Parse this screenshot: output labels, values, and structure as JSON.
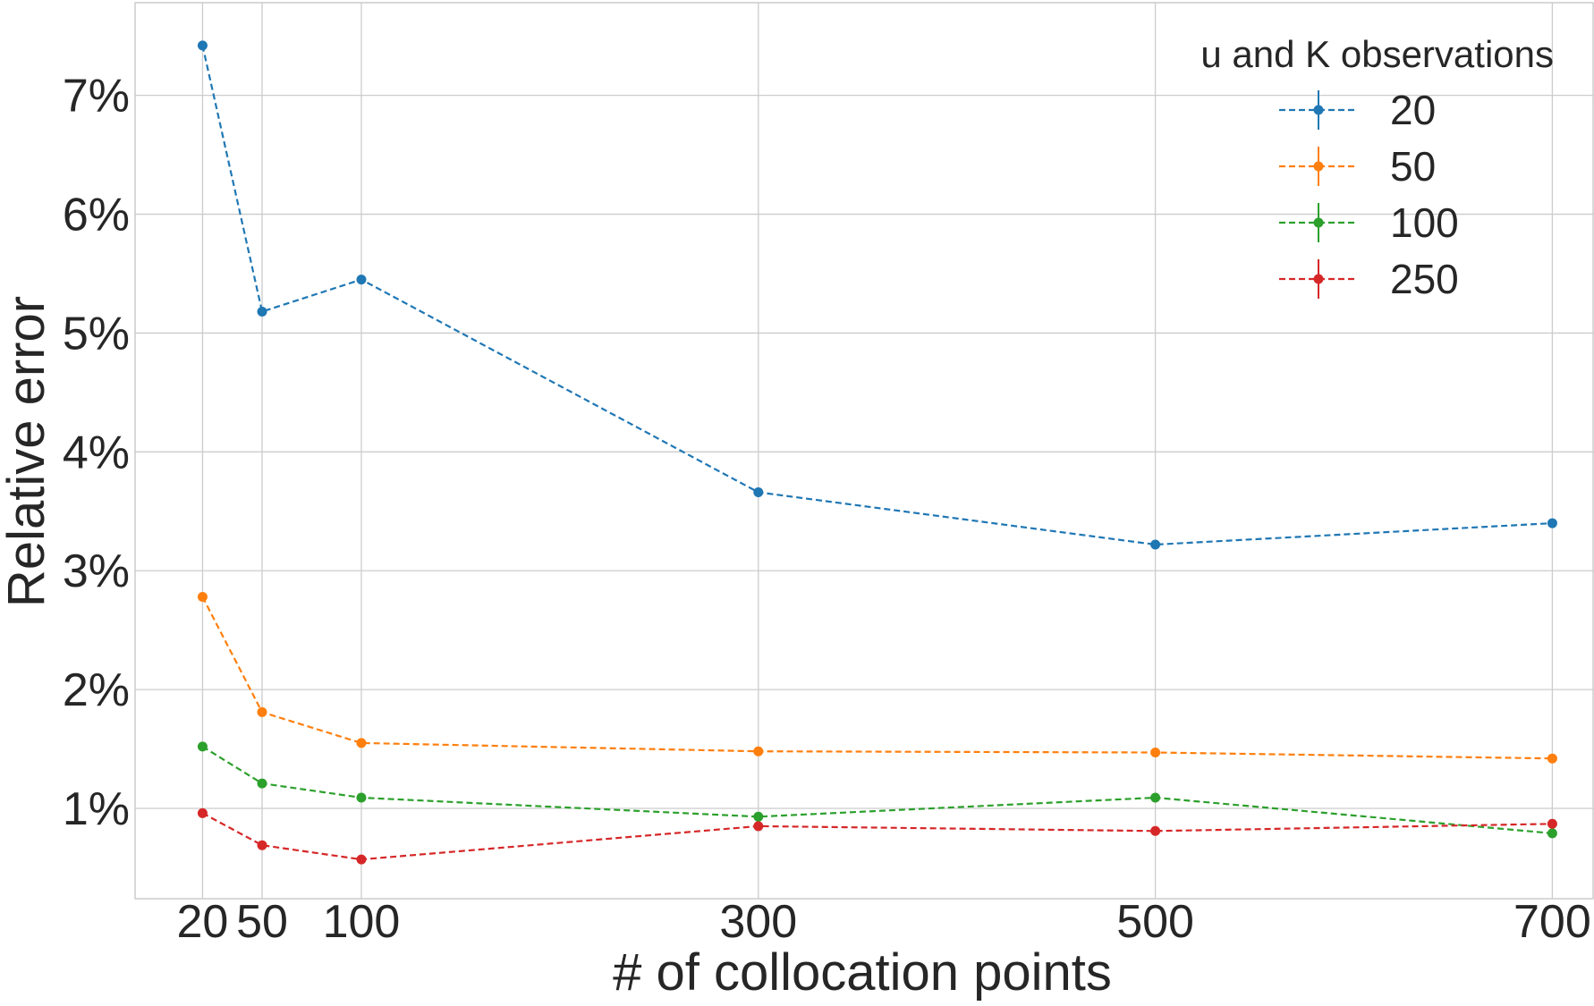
{
  "chart_data": {
    "type": "line",
    "title": "",
    "xlabel": "# of collocation points",
    "ylabel": "Relative error",
    "x": [
      20,
      50,
      100,
      300,
      500,
      700
    ],
    "xticks": [
      20,
      50,
      100,
      300,
      500,
      700
    ],
    "xlim": [
      -14,
      721
    ],
    "yticks": [
      1,
      2,
      3,
      4,
      5,
      6,
      7
    ],
    "ytick_labels": [
      "1%",
      "2%",
      "3%",
      "4%",
      "5%",
      "6%",
      "7%"
    ],
    "ylim": [
      0.24,
      7.78
    ],
    "y_unit": "%",
    "grid": true,
    "line_style": "dashed",
    "marker": "circle",
    "legend": {
      "title": "u and K observations",
      "placement": "top-right"
    },
    "series": [
      {
        "name": "20",
        "color": "#1f77b4",
        "values": [
          7.42,
          5.18,
          5.45,
          3.66,
          3.22,
          3.4
        ]
      },
      {
        "name": "50",
        "color": "#ff7f0e",
        "values": [
          2.78,
          1.81,
          1.55,
          1.48,
          1.47,
          1.42
        ]
      },
      {
        "name": "100",
        "color": "#2ca02c",
        "values": [
          1.52,
          1.21,
          1.09,
          0.93,
          1.09,
          0.79
        ]
      },
      {
        "name": "250",
        "color": "#d62728",
        "values": [
          0.96,
          0.69,
          0.57,
          0.85,
          0.81,
          0.87
        ]
      }
    ]
  }
}
